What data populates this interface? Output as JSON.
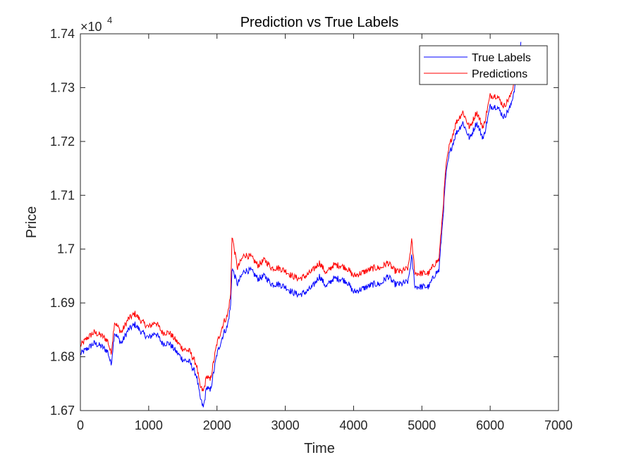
{
  "chart_data": {
    "type": "line",
    "title": "Prediction vs True Labels",
    "xlabel": "Time",
    "ylabel": "Price",
    "exponent_multiplier": "×10",
    "exponent_power": "4",
    "xlim": [
      0,
      7000
    ],
    "ylim": [
      1.67,
      1.74
    ],
    "xticks": [
      0,
      1000,
      2000,
      3000,
      4000,
      5000,
      6000,
      7000
    ],
    "xtick_labels": [
      "0",
      "1000",
      "2000",
      "3000",
      "4000",
      "5000",
      "6000",
      "7000"
    ],
    "yticks": [
      1.67,
      1.68,
      1.69,
      1.7,
      1.71,
      1.72,
      1.73,
      1.74
    ],
    "ytick_labels": [
      "1.67",
      "1.68",
      "1.69",
      "1.7",
      "1.71",
      "1.72",
      "1.73",
      "1.74"
    ],
    "grid": false,
    "legend_position": "top-right",
    "x": [
      0,
      100,
      200,
      300,
      400,
      450,
      500,
      600,
      700,
      800,
      900,
      1000,
      1100,
      1200,
      1300,
      1400,
      1500,
      1600,
      1700,
      1750,
      1800,
      1850,
      1900,
      2000,
      2100,
      2150,
      2200,
      2220,
      2300,
      2400,
      2500,
      2600,
      2700,
      2800,
      2900,
      3000,
      3100,
      3200,
      3300,
      3400,
      3500,
      3600,
      3700,
      3800,
      3900,
      4000,
      4100,
      4200,
      4300,
      4400,
      4500,
      4600,
      4700,
      4800,
      4850,
      4900,
      5000,
      5100,
      5200,
      5250,
      5300,
      5350,
      5400,
      5500,
      5600,
      5700,
      5800,
      5900,
      6000,
      6100,
      6200,
      6300,
      6400,
      6450
    ],
    "series": [
      {
        "name": "True Labels",
        "color": "#0000ff",
        "values": [
          1.6805,
          1.6815,
          1.6825,
          1.682,
          1.681,
          1.6785,
          1.6845,
          1.6825,
          1.685,
          1.686,
          1.6845,
          1.6835,
          1.6845,
          1.6825,
          1.6825,
          1.681,
          1.6795,
          1.679,
          1.6765,
          1.6725,
          1.6705,
          1.6745,
          1.6735,
          1.6805,
          1.6845,
          1.6855,
          1.6895,
          1.6965,
          1.6935,
          1.696,
          1.696,
          1.6945,
          1.695,
          1.6935,
          1.6935,
          1.693,
          1.692,
          1.6915,
          1.692,
          1.693,
          1.695,
          1.693,
          1.6945,
          1.6945,
          1.694,
          1.692,
          1.6925,
          1.693,
          1.6935,
          1.6935,
          1.695,
          1.6935,
          1.6935,
          1.694,
          1.6985,
          1.693,
          1.693,
          1.693,
          1.6955,
          1.696,
          1.7045,
          1.7135,
          1.7175,
          1.7215,
          1.7235,
          1.7205,
          1.7235,
          1.7205,
          1.7265,
          1.7265,
          1.7245,
          1.7265,
          1.7325,
          1.7385
        ]
      },
      {
        "name": "Predictions",
        "color": "#ff0000",
        "values": [
          1.682,
          1.6835,
          1.6845,
          1.684,
          1.683,
          1.6805,
          1.6865,
          1.6845,
          1.687,
          1.688,
          1.6865,
          1.6855,
          1.6865,
          1.6845,
          1.6845,
          1.683,
          1.6815,
          1.681,
          1.6785,
          1.6745,
          1.6735,
          1.6765,
          1.6755,
          1.6825,
          1.6865,
          1.6875,
          1.6915,
          1.7025,
          1.6965,
          1.699,
          1.6985,
          1.697,
          1.698,
          1.6965,
          1.6965,
          1.696,
          1.695,
          1.6945,
          1.695,
          1.696,
          1.6975,
          1.6955,
          1.697,
          1.697,
          1.6965,
          1.695,
          1.6955,
          1.696,
          1.6965,
          1.6965,
          1.6975,
          1.696,
          1.6958,
          1.6965,
          1.7015,
          1.6955,
          1.6955,
          1.6955,
          1.6975,
          1.698,
          1.706,
          1.715,
          1.719,
          1.7235,
          1.7255,
          1.7225,
          1.7255,
          1.7225,
          1.7285,
          1.7285,
          1.7265,
          1.7285,
          1.7335,
          1.737
        ]
      }
    ]
  }
}
